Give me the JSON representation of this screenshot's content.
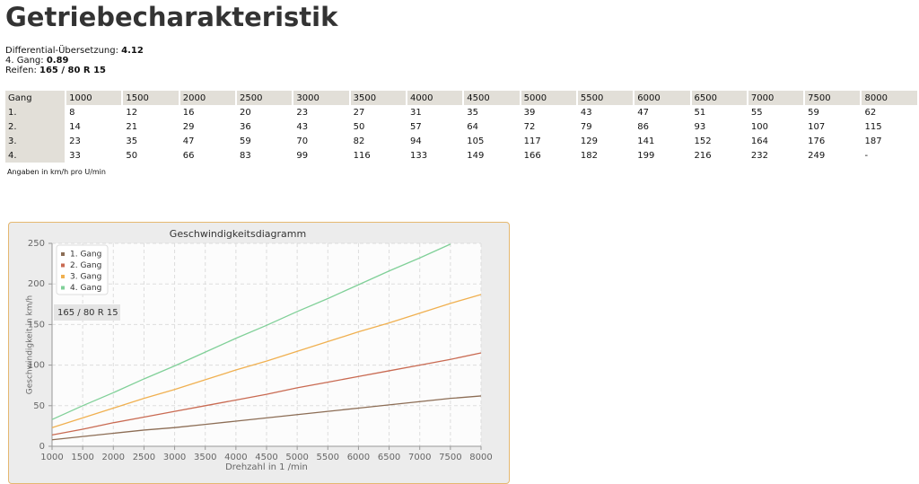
{
  "title": "Getriebecharakteristik",
  "info": [
    {
      "label": "Differential-Übersetzung:",
      "value": "4.12"
    },
    {
      "label": "4. Gang:",
      "value": "0.89"
    },
    {
      "label": "Reifen:",
      "value": "165 / 80 R 15"
    }
  ],
  "table": {
    "header": [
      "Gang",
      1000,
      1500,
      2000,
      2500,
      3000,
      3500,
      4000,
      4500,
      5000,
      5500,
      6000,
      6500,
      7000,
      7500,
      8000
    ],
    "rows": [
      [
        "1.",
        8,
        12,
        16,
        20,
        23,
        27,
        31,
        35,
        39,
        43,
        47,
        51,
        55,
        59,
        62
      ],
      [
        "2.",
        14,
        21,
        29,
        36,
        43,
        50,
        57,
        64,
        72,
        79,
        86,
        93,
        100,
        107,
        115
      ],
      [
        "3.",
        23,
        35,
        47,
        59,
        70,
        82,
        94,
        105,
        117,
        129,
        141,
        152,
        164,
        176,
        187
      ],
      [
        "4.",
        33,
        50,
        66,
        83,
        99,
        116,
        133,
        149,
        166,
        182,
        199,
        216,
        232,
        249,
        "-"
      ]
    ]
  },
  "note": "Angaben in km/h pro U/min",
  "chart_data": {
    "type": "line",
    "title": "Geschwindigkeitsdiagramm",
    "x_label": "Drehzahl in 1 /min",
    "y_label": "Geschwindigkeit in km/h",
    "annotation": "165 / 80 R 15",
    "x": [
      1000,
      1500,
      2000,
      2500,
      3000,
      3500,
      4000,
      4500,
      5000,
      5500,
      6000,
      6500,
      7000,
      7500,
      8000
    ],
    "series": [
      {
        "name": "1. Gang",
        "color": "#8c6d55",
        "values": [
          8,
          12,
          16,
          20,
          23,
          27,
          31,
          35,
          39,
          43,
          47,
          51,
          55,
          59,
          62
        ]
      },
      {
        "name": "2. Gang",
        "color": "#c96a52",
        "values": [
          14,
          21,
          29,
          36,
          43,
          50,
          57,
          64,
          72,
          79,
          86,
          93,
          100,
          107,
          115
        ]
      },
      {
        "name": "3. Gang",
        "color": "#f0b050",
        "values": [
          23,
          35,
          47,
          59,
          70,
          82,
          94,
          105,
          117,
          129,
          141,
          152,
          164,
          176,
          187
        ]
      },
      {
        "name": "4. Gang",
        "color": "#80d098",
        "values": [
          33,
          50,
          66,
          83,
          99,
          116,
          133,
          149,
          166,
          182,
          199,
          216,
          232,
          249,
          null
        ]
      }
    ],
    "xlim": [
      1000,
      8000
    ],
    "ylim": [
      0,
      250
    ],
    "xticks": [
      1000,
      1500,
      2000,
      2500,
      3000,
      3500,
      4000,
      4500,
      5000,
      5500,
      6000,
      6500,
      7000,
      7500,
      8000
    ],
    "yticks": [
      0,
      50,
      100,
      150,
      200,
      250
    ],
    "grid": true,
    "legend": "upper-left"
  }
}
